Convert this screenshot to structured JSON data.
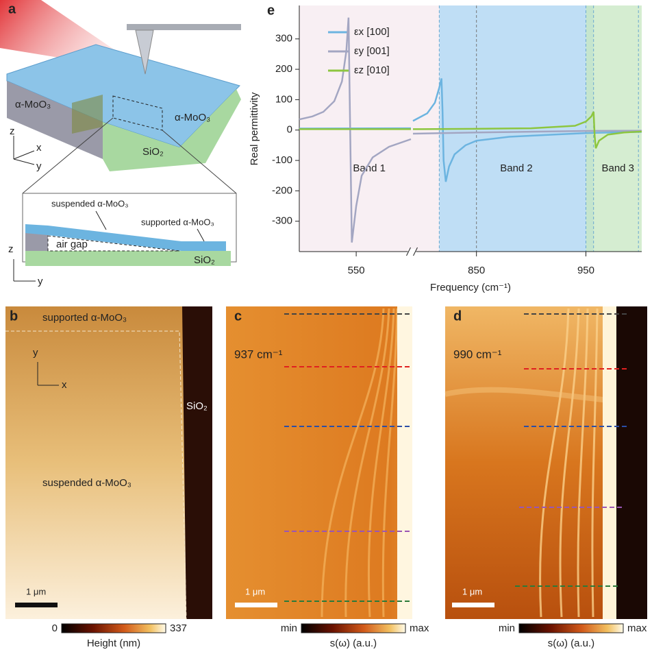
{
  "panel_a": {
    "label": "a",
    "left_layer": "α-MoO₃",
    "right_layer": "α-MoO₃",
    "substrate": "SiO₂",
    "axes": [
      "z",
      "x",
      "y"
    ],
    "inset": {
      "suspended": "suspended α-MoO₃",
      "supported": "supported α-MoO₃",
      "air_gap": "air gap",
      "substrate": "SiO₂",
      "axes": [
        "z",
        "y"
      ]
    }
  },
  "panel_b": {
    "label": "b",
    "top": "supported α-MoO₃",
    "middle": "suspended α-MoO₃",
    "substrate": "SiO₂",
    "axes": [
      "y",
      "x"
    ],
    "scale_bar": "1 μm",
    "colorbar": {
      "min": 0,
      "max": 337,
      "label": "Height (nm)"
    }
  },
  "panel_c": {
    "label": "c",
    "frequency": "937 cm⁻¹",
    "scale_bar": "1 μm",
    "colorbar": {
      "min": "min",
      "max": "max",
      "label": "s(ω) (a.u.)"
    }
  },
  "panel_d": {
    "label": "d",
    "frequency": "990 cm⁻¹",
    "scale_bar": "1 μm",
    "colorbar": {
      "min": "min",
      "max": "max",
      "label": "s(ω) (a.u.)"
    }
  },
  "chart_data": {
    "type": "line",
    "panel_label": "e",
    "xlabel": "Frequency (cm⁻¹)",
    "ylabel": "Real permittivity",
    "xlim": [
      498,
      1001
    ],
    "x_break": [
      600,
      792
    ],
    "xticks": [
      550,
      850,
      950
    ],
    "ylim": [
      -400,
      410
    ],
    "yticks": [
      -300,
      -200,
      -100,
      0,
      100,
      200,
      300
    ],
    "legend": "upper left",
    "bands": [
      {
        "label": "Band 1",
        "range": [
          498,
          816
        ],
        "color": "#f6eaef"
      },
      {
        "label": "Band 2",
        "range": [
          816,
          957
        ],
        "color": "#a9d3f2"
      },
      {
        "label": "Band 3",
        "range": [
          950,
          1001
        ],
        "color": "#c7e7c1"
      }
    ],
    "dashed_lines": [
      816,
      850,
      950,
      957,
      998
    ],
    "series": [
      {
        "name": "εx [100]",
        "color": "#6cb4e0",
        "x": [
          498,
          600,
          null,
          792,
          805,
          812,
          816,
          818,
          819,
          820,
          822,
          825,
          830,
          840,
          850,
          880,
          920,
          950,
          1001
        ],
        "values": [
          5,
          6,
          null,
          30,
          55,
          90,
          140,
          170,
          60,
          -100,
          -170,
          -120,
          -80,
          -50,
          -35,
          -22,
          -15,
          -10,
          -6
        ]
      },
      {
        "name": "εy [001]",
        "color": "#a3a6c2",
        "x": [
          498,
          510,
          520,
          530,
          537,
          541,
          543,
          544.5,
          546,
          550,
          555,
          565,
          580,
          600,
          null,
          792,
          850,
          950,
          1001
        ],
        "values": [
          35,
          45,
          60,
          95,
          160,
          260,
          370,
          0,
          -370,
          -250,
          -150,
          -90,
          -55,
          -30,
          null,
          -12,
          -8,
          -3,
          -2
        ]
      },
      {
        "name": "εz [010]",
        "color": "#8dc63f",
        "x": [
          498,
          600,
          null,
          792,
          850,
          900,
          940,
          950,
          955,
          957,
          958,
          959,
          962,
          970,
          985,
          1001
        ],
        "values": [
          3,
          3,
          null,
          3,
          4,
          6,
          14,
          28,
          45,
          60,
          -20,
          -60,
          -35,
          -15,
          -8,
          -5
        ]
      }
    ]
  }
}
